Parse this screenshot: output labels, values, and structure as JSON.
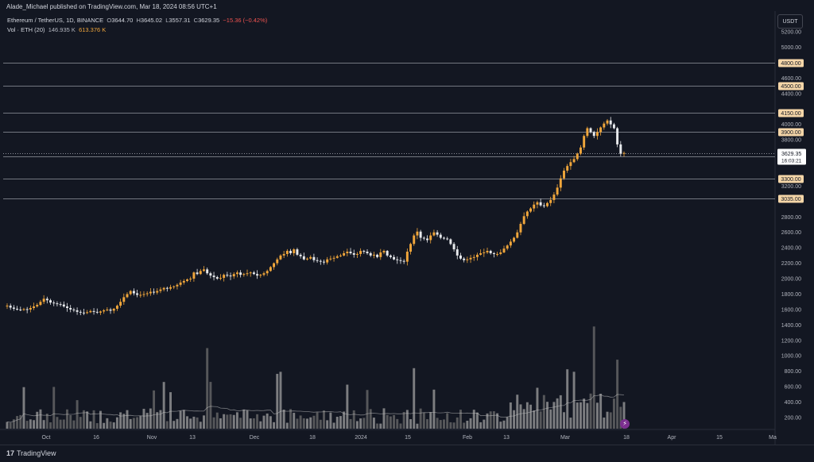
{
  "header": {
    "published": "Alade_Michael published on TradingView.com, Mar 18, 2024 08:56 UTC+1"
  },
  "legend": {
    "symbol": "Ethereum / TetherUS, 1D, BINANCE",
    "o_label": "O",
    "o": "3644.70",
    "h_label": "H",
    "h": "3645.02",
    "l_label": "L",
    "l": "3557.31",
    "c_label": "C",
    "c": "3629.35",
    "change": "−15.36 (−0.42%)",
    "vol_label": "Vol · ETH (20)",
    "vol_value": "146.935 K",
    "vol_ma": "613.376 K"
  },
  "currency_button": "USDT",
  "footer": {
    "brand": "TradingView"
  },
  "colors": {
    "up": "#f0a63b",
    "down": "#e8eaed",
    "bg": "#131722",
    "grid": "#1e222d",
    "level_bg": "#f5d6a8"
  },
  "chart_data": {
    "type": "candlestick",
    "y_range": [
      100,
      5300
    ],
    "y_ticks": [
      200,
      400,
      600,
      800,
      1000,
      1200,
      1400,
      1600,
      1800,
      2000,
      2200,
      2400,
      2600,
      2800,
      3200,
      3800,
      4000,
      4400,
      4600,
      5000,
      5200
    ],
    "y_tick_labels": [
      "200.00",
      "400.00",
      "600.00",
      "800.00",
      "1000.00",
      "1200.00",
      "1400.00",
      "1600.00",
      "1800.00",
      "2000.00",
      "2200.00",
      "2400.00",
      "2600.00",
      "2800.00",
      "3200.00",
      "3800.00",
      "4000.00",
      "4400.00",
      "4600.00",
      "5000.00",
      "5200.00"
    ],
    "x_ticks": [
      "Oct",
      "16",
      "Nov",
      "13",
      "Dec",
      "18",
      "2024",
      "15",
      "Feb",
      "13",
      "Mar",
      "18",
      "Apr",
      "15",
      "Ma"
    ],
    "levels": [
      "4800.00",
      "4500.00",
      "4150.00",
      "3900.00",
      "3580.00",
      "3300.00",
      "3035.00"
    ],
    "level_values": [
      4800,
      4500,
      4150,
      3900,
      3580,
      3300,
      3035
    ],
    "current_price": "3629.35",
    "current_price_value": 3629.35,
    "countdown": "16:03:21",
    "closes": [
      1650,
      1625,
      1610,
      1600,
      1595,
      1605,
      1600,
      1620,
      1640,
      1660,
      1700,
      1740,
      1720,
      1690,
      1680,
      1670,
      1665,
      1640,
      1620,
      1600,
      1590,
      1570,
      1560,
      1555,
      1565,
      1580,
      1570,
      1560,
      1575,
      1590,
      1600,
      1585,
      1610,
      1650,
      1700,
      1760,
      1800,
      1840,
      1810,
      1790,
      1790,
      1800,
      1810,
      1830,
      1820,
      1840,
      1860,
      1880,
      1870,
      1890,
      1900,
      1920,
      1950,
      1970,
      1990,
      2000,
      2080,
      2060,
      2100,
      2120,
      2070,
      2040,
      2020,
      2000,
      2010,
      2050,
      2040,
      2030,
      2060,
      2080,
      2050,
      2060,
      2070,
      2080,
      2060,
      2040,
      2050,
      2070,
      2100,
      2150,
      2200,
      2250,
      2300,
      2320,
      2360,
      2330,
      2380,
      2310,
      2290,
      2250,
      2260,
      2280,
      2240,
      2230,
      2220,
      2210,
      2250,
      2260,
      2270,
      2290,
      2300,
      2330,
      2350,
      2330,
      2310,
      2320,
      2360,
      2350,
      2330,
      2300,
      2310,
      2280,
      2340,
      2360,
      2300,
      2280,
      2250,
      2240,
      2230,
      2220,
      2350,
      2450,
      2560,
      2610,
      2530,
      2520,
      2500,
      2560,
      2600,
      2570,
      2530,
      2520,
      2510,
      2450,
      2380,
      2300,
      2260,
      2240,
      2250,
      2270,
      2280,
      2310,
      2330,
      2340,
      2360,
      2330,
      2320,
      2320,
      2340,
      2390,
      2430,
      2480,
      2530,
      2600,
      2710,
      2810,
      2870,
      2910,
      2960,
      2990,
      2950,
      2940,
      2980,
      3020,
      3090,
      3180,
      3300,
      3400,
      3460,
      3510,
      3550,
      3620,
      3700,
      3850,
      3950,
      3900,
      3850,
      3900,
      3960,
      4010,
      4050,
      4000,
      3950,
      3740,
      3620,
      3629
    ]
  }
}
